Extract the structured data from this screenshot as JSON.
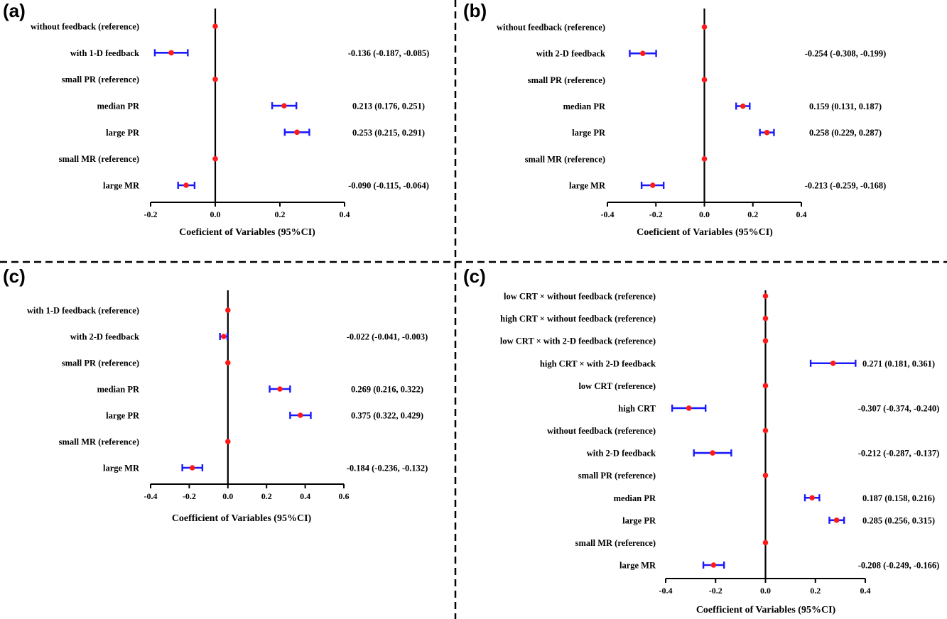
{
  "colors": {
    "point": "#ff1a1a",
    "ci": "#1a1aff",
    "axis": "#000000"
  },
  "chart_data": [
    {
      "type": "forest",
      "panel_label": "(a)",
      "xlabel": "Coeficient of Variables (95%CI)",
      "xlim": [
        -0.2,
        0.4
      ],
      "xticks": [
        -0.2,
        0.0,
        0.2,
        0.4
      ],
      "tick_labels": [
        "-0.2",
        "0.0",
        "0.2",
        "0.4"
      ],
      "rows": [
        {
          "label": "without feedback (reference)",
          "value": 0,
          "ci": null,
          "text": ""
        },
        {
          "label": "with 1-D feedback",
          "value": -0.136,
          "ci": [
            -0.187,
            -0.085
          ],
          "text": "-0.136 (-0.187, -0.085)"
        },
        {
          "label": "small PR (reference)",
          "value": 0,
          "ci": null,
          "text": ""
        },
        {
          "label": "median PR",
          "value": 0.213,
          "ci": [
            0.176,
            0.251
          ],
          "text": "0.213 (0.176, 0.251)"
        },
        {
          "label": "large PR",
          "value": 0.253,
          "ci": [
            0.215,
            0.291
          ],
          "text": "0.253 (0.215, 0.291)"
        },
        {
          "label": "small MR (reference)",
          "value": 0,
          "ci": null,
          "text": ""
        },
        {
          "label": "large MR",
          "value": -0.09,
          "ci": [
            -0.115,
            -0.064
          ],
          "text": "-0.090 (-0.115, -0.064)"
        }
      ]
    },
    {
      "type": "forest",
      "panel_label": "(b)",
      "xlabel": "Coeficient of Variables (95%CI)",
      "xlim": [
        -0.4,
        0.4
      ],
      "xticks": [
        -0.4,
        -0.2,
        0.0,
        0.2,
        0.4
      ],
      "tick_labels": [
        "-0.4",
        "-0.2",
        "0.0",
        "0.2",
        "0.4"
      ],
      "rows": [
        {
          "label": "without feedback (reference)",
          "value": 0,
          "ci": null,
          "text": ""
        },
        {
          "label": "with 2-D feedback",
          "value": -0.254,
          "ci": [
            -0.308,
            -0.199
          ],
          "text": "-0.254 (-0.308, -0.199)"
        },
        {
          "label": "small PR (reference)",
          "value": 0,
          "ci": null,
          "text": ""
        },
        {
          "label": "median PR",
          "value": 0.159,
          "ci": [
            0.131,
            0.187
          ],
          "text": "0.159 (0.131, 0.187)"
        },
        {
          "label": "large PR",
          "value": 0.258,
          "ci": [
            0.229,
            0.287
          ],
          "text": "0.258 (0.229, 0.287)"
        },
        {
          "label": "small MR (reference)",
          "value": 0,
          "ci": null,
          "text": ""
        },
        {
          "label": "large MR",
          "value": -0.213,
          "ci": [
            -0.259,
            -0.168
          ],
          "text": "-0.213 (-0.259, -0.168)"
        }
      ]
    },
    {
      "type": "forest",
      "panel_label": "(c)",
      "xlabel": "Coefficient of Variables (95%CI)",
      "xlim": [
        -0.4,
        0.6
      ],
      "xticks": [
        -0.4,
        -0.2,
        0.0,
        0.2,
        0.4,
        0.6
      ],
      "tick_labels": [
        "-0.4",
        "-0.2",
        "0.0",
        "0.2",
        "0.4",
        "0.6"
      ],
      "rows": [
        {
          "label": "with 1-D feedback (reference)",
          "value": 0,
          "ci": null,
          "text": ""
        },
        {
          "label": "with 2-D feedback",
          "value": -0.022,
          "ci": [
            -0.041,
            -0.003
          ],
          "text": "-0.022 (-0.041, -0.003)"
        },
        {
          "label": "small PR (reference)",
          "value": 0,
          "ci": null,
          "text": ""
        },
        {
          "label": "median PR",
          "value": 0.269,
          "ci": [
            0.216,
            0.322
          ],
          "text": "0.269 (0.216, 0.322)"
        },
        {
          "label": "large PR",
          "value": 0.375,
          "ci": [
            0.322,
            0.429
          ],
          "text": "0.375 (0.322, 0.429)"
        },
        {
          "label": "small MR (reference)",
          "value": 0,
          "ci": null,
          "text": ""
        },
        {
          "label": "large MR",
          "value": -0.184,
          "ci": [
            -0.236,
            -0.132
          ],
          "text": "-0.184 (-0.236, -0.132)"
        }
      ]
    },
    {
      "type": "forest",
      "panel_label": "(c)",
      "xlabel": "Coefficient of Variables (95%CI)",
      "xlim": [
        -0.4,
        0.4
      ],
      "xticks": [
        -0.4,
        -0.2,
        0.0,
        0.2,
        0.4
      ],
      "tick_labels": [
        "-0.4",
        "-0.2",
        "0.0",
        "0.2",
        "0.4"
      ],
      "rows": [
        {
          "label": "low CRT × without feedback (reference)",
          "value": 0,
          "ci": null,
          "text": ""
        },
        {
          "label": "high CRT × without feedback (reference)",
          "value": 0,
          "ci": null,
          "text": ""
        },
        {
          "label": "low  CRT × with 2-D feedback (reference)",
          "value": 0,
          "ci": null,
          "text": ""
        },
        {
          "label": "high CRT × with 2-D feedback",
          "value": 0.271,
          "ci": [
            0.181,
            0.361
          ],
          "text": "0.271 (0.181, 0.361)"
        },
        {
          "label": "low CRT (reference)",
          "value": 0,
          "ci": null,
          "text": ""
        },
        {
          "label": "high CRT",
          "value": -0.307,
          "ci": [
            -0.374,
            -0.24
          ],
          "text": "-0.307 (-0.374, -0.240)"
        },
        {
          "label": "without feedback (reference)",
          "value": 0,
          "ci": null,
          "text": ""
        },
        {
          "label": "with 2-D feedback",
          "value": -0.212,
          "ci": [
            -0.287,
            -0.137
          ],
          "text": "-0.212 (-0.287, -0.137)"
        },
        {
          "label": "small PR (reference)",
          "value": 0,
          "ci": null,
          "text": ""
        },
        {
          "label": "median PR",
          "value": 0.187,
          "ci": [
            0.158,
            0.216
          ],
          "text": "0.187 (0.158, 0.216)"
        },
        {
          "label": "large PR",
          "value": 0.285,
          "ci": [
            0.256,
            0.315
          ],
          "text": "0.285 (0.256, 0.315)"
        },
        {
          "label": "small MR (reference)",
          "value": 0,
          "ci": null,
          "text": ""
        },
        {
          "label": "large MR",
          "value": -0.208,
          "ci": [
            -0.249,
            -0.166
          ],
          "text": "-0.208 (-0.249, -0.166)"
        }
      ]
    }
  ]
}
